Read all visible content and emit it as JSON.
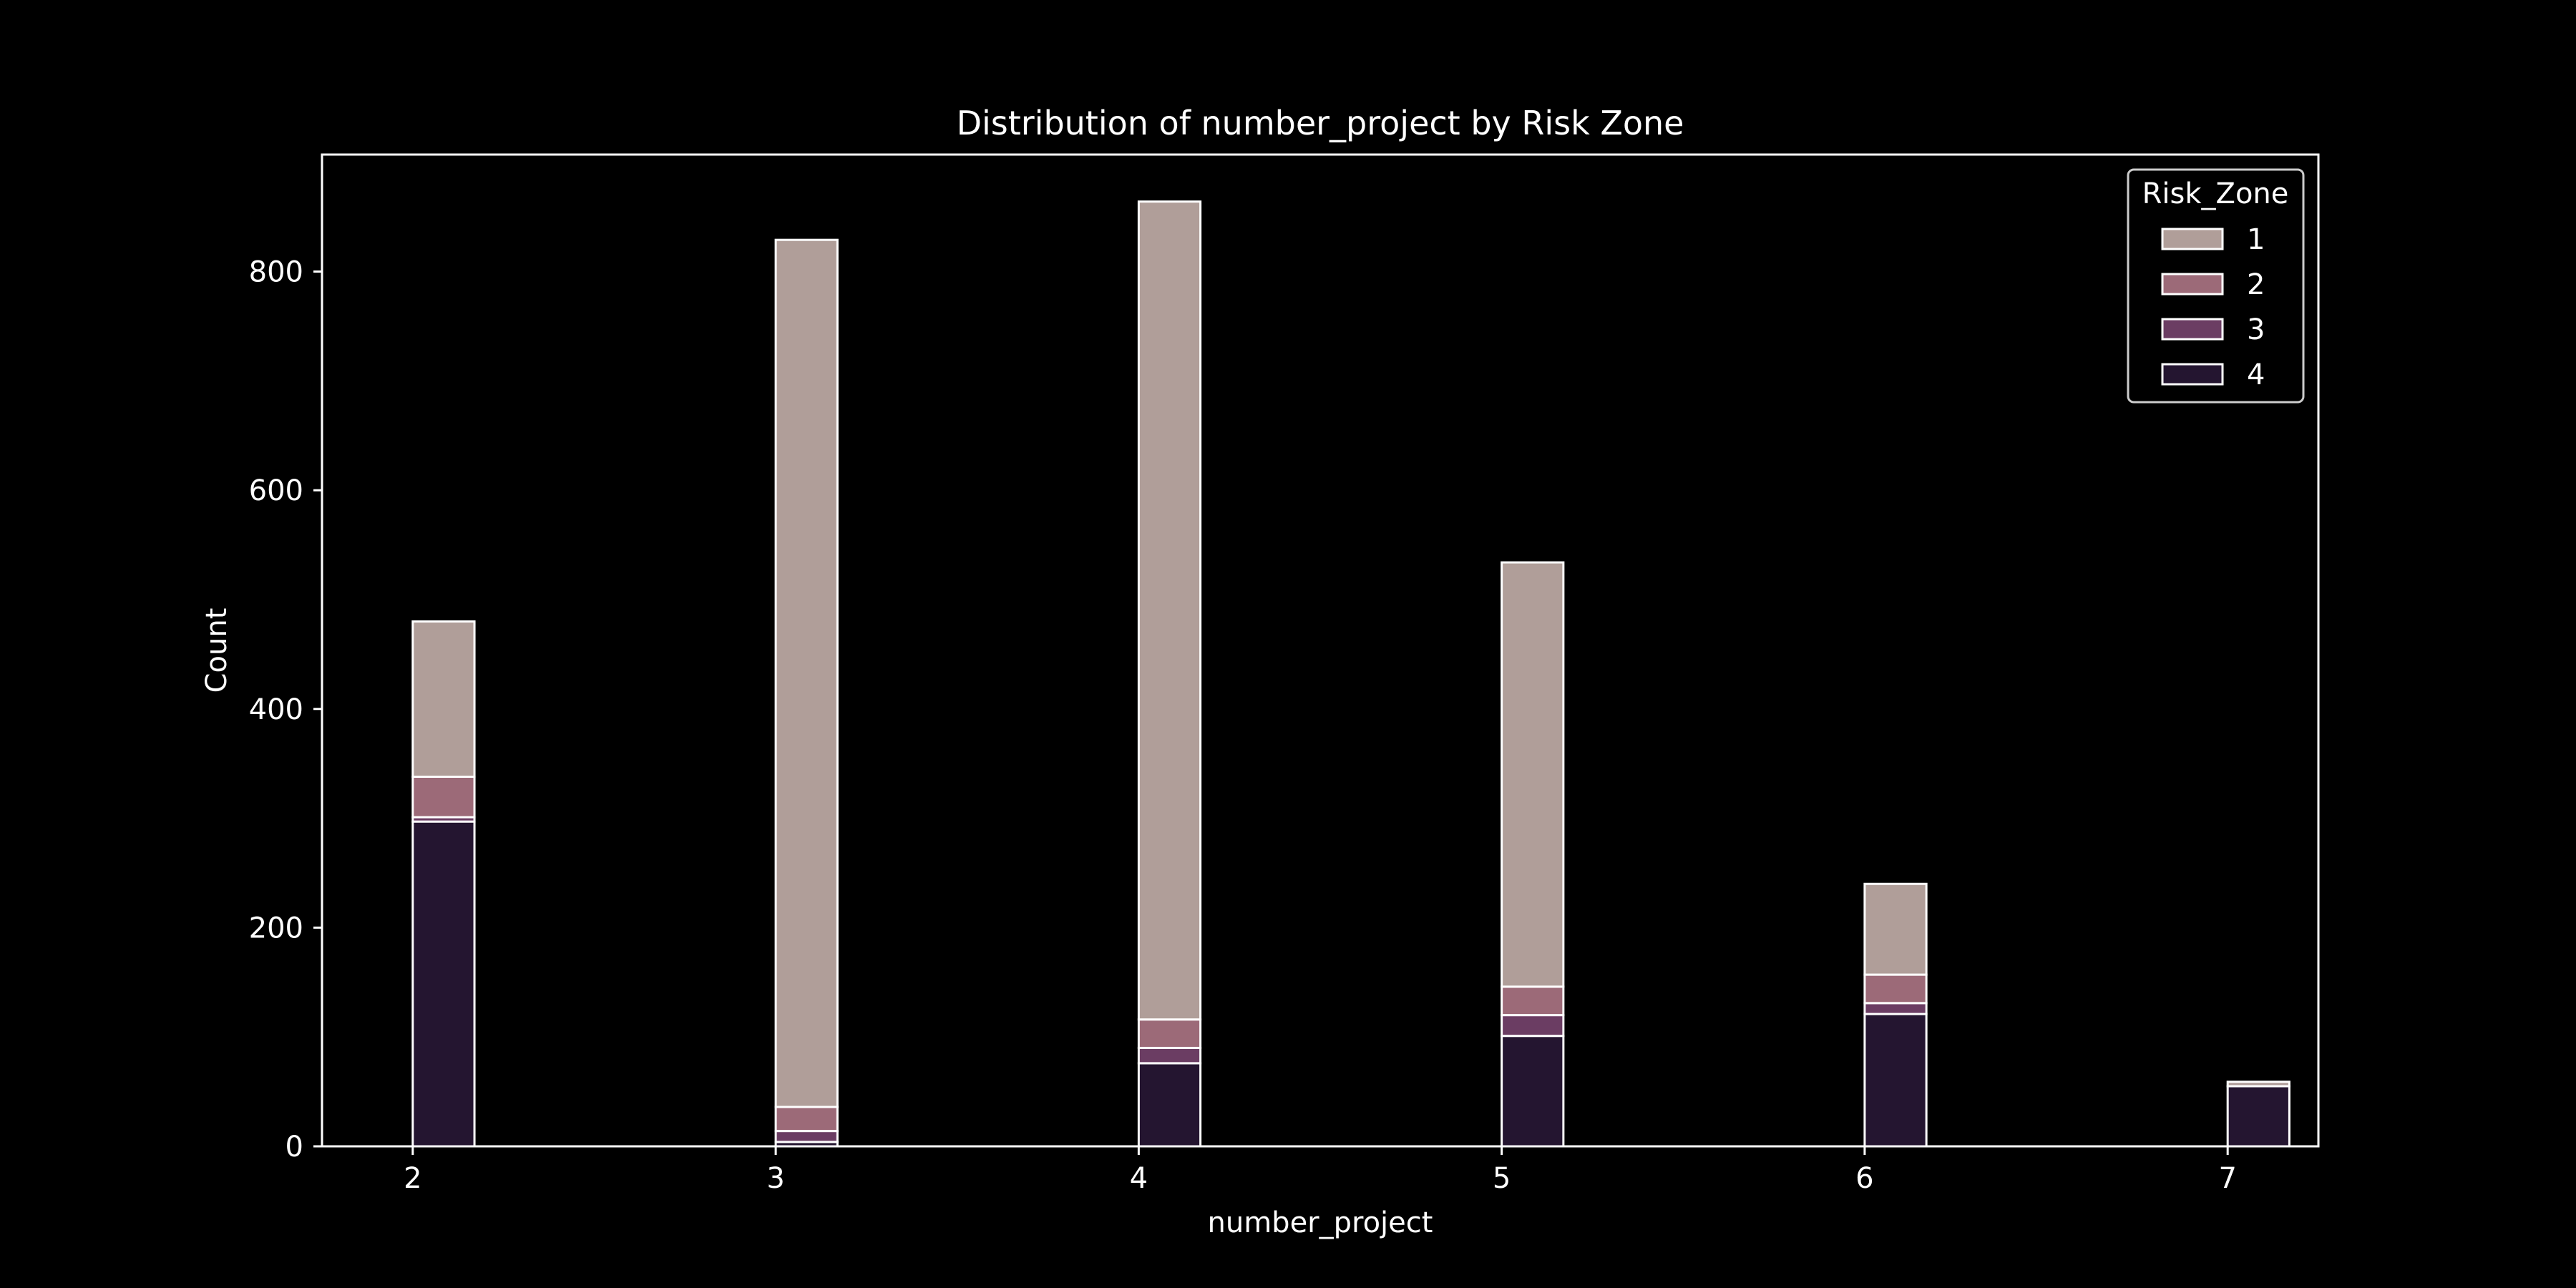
{
  "chart_data": {
    "type": "bar",
    "stacked": true,
    "title": "Distribution of number_project by Risk Zone",
    "xlabel": "number_project",
    "ylabel": "Count",
    "x": [
      2,
      3,
      4,
      5,
      6,
      7
    ],
    "x_ticks": [
      "2",
      "3",
      "4",
      "5",
      "6",
      "7"
    ],
    "xlim": [
      1.75,
      7.25
    ],
    "ylim": [
      0,
      907
    ],
    "y_ticks": [
      0,
      200,
      400,
      600,
      800
    ],
    "grid": false,
    "legend": {
      "title": "Risk_Zone",
      "placement": "top-right"
    },
    "series": [
      {
        "name": "4",
        "color": "#241530",
        "values": [
          297,
          4,
          76,
          101,
          121,
          55
        ]
      },
      {
        "name": "3",
        "color": "#6b3d63",
        "values": [
          4,
          10,
          14,
          19,
          10,
          0
        ]
      },
      {
        "name": "2",
        "color": "#9c6a78",
        "values": [
          37,
          22,
          26,
          26,
          26,
          0
        ]
      },
      {
        "name": "1",
        "color": "#b09e99",
        "values": [
          142,
          793,
          748,
          388,
          83,
          4
        ]
      }
    ],
    "legend_order": [
      "1",
      "2",
      "3",
      "4"
    ]
  }
}
